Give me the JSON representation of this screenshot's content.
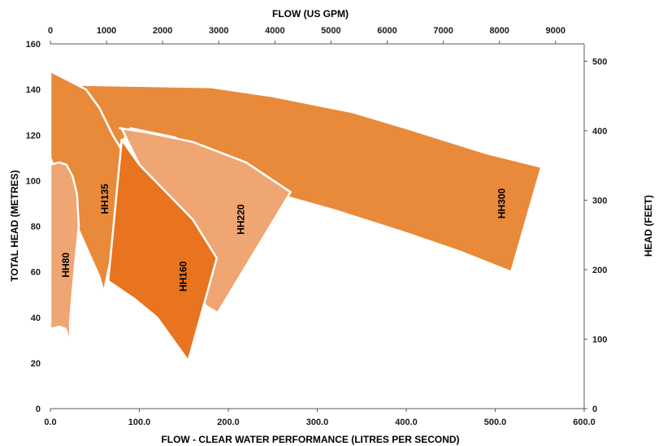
{
  "chart_data": {
    "type": "area",
    "title": "",
    "xlabel": "FLOW - CLEAR WATER PERFORMANCE (LITRES PER SECOND)",
    "ylabel": "TOTAL HEAD (METRES)",
    "x2label": "FLOW (US GPM)",
    "y2label": "HEAD (FEET)",
    "xlim": [
      0,
      600
    ],
    "ylim": [
      0,
      160
    ],
    "x2lim": [
      0,
      9510
    ],
    "y2lim": [
      0,
      525
    ],
    "x_ticks": [
      "0.0",
      "100.0",
      "200.0",
      "300.0",
      "400.0",
      "500.0",
      "600.0"
    ],
    "x_tick_values": [
      0,
      100,
      200,
      300,
      400,
      500,
      600
    ],
    "y_ticks": [
      "0",
      "20",
      "40",
      "60",
      "80",
      "100",
      "120",
      "140",
      "160"
    ],
    "y_tick_values": [
      0,
      20,
      40,
      60,
      80,
      100,
      120,
      140,
      160
    ],
    "x2_ticks": [
      "0",
      "1000",
      "2000",
      "3000",
      "4000",
      "5000",
      "6000",
      "7000",
      "8000",
      "9000"
    ],
    "x2_tick_values": [
      0,
      1000,
      2000,
      3000,
      4000,
      5000,
      6000,
      7000,
      8000,
      9000
    ],
    "y2_ticks": [
      "0",
      "100",
      "200",
      "300",
      "400",
      "500"
    ],
    "y2_tick_values": [
      0,
      100,
      200,
      300,
      400,
      500
    ],
    "grid": false,
    "series": [
      {
        "name": "HH300",
        "color": "#e98a3a",
        "label_at": [
          508,
          90
        ],
        "points": [
          [
            0,
            148
          ],
          [
            35,
            142
          ],
          [
            180,
            141
          ],
          [
            250,
            137
          ],
          [
            340,
            130
          ],
          [
            400,
            123
          ],
          [
            490,
            112
          ],
          [
            552,
            106
          ],
          [
            518,
            60
          ],
          [
            460,
            69
          ],
          [
            400,
            77
          ],
          [
            320,
            87
          ],
          [
            265,
            93
          ],
          [
            140,
            119
          ],
          [
            90,
            123
          ],
          [
            70,
            110
          ],
          [
            50,
            100
          ],
          [
            30,
            80
          ],
          [
            0,
            80
          ]
        ]
      },
      {
        "name": "HH220",
        "color": "#efa672",
        "label_at": [
          215,
          83
        ],
        "points": [
          [
            78,
            123
          ],
          [
            110,
            121
          ],
          [
            160,
            117
          ],
          [
            220,
            108
          ],
          [
            270,
            95
          ],
          [
            188,
            42
          ],
          [
            175,
            45
          ],
          [
            145,
            70
          ],
          [
            100,
            107
          ],
          [
            80,
            123
          ]
        ]
      },
      {
        "name": "HH135",
        "color": "#e98a3a",
        "label_at": [
          62,
          92
        ],
        "points": [
          [
            0,
            148
          ],
          [
            40,
            140
          ],
          [
            55,
            132
          ],
          [
            70,
            120
          ],
          [
            90,
            107
          ],
          [
            60,
            51
          ],
          [
            55,
            58
          ],
          [
            30,
            80
          ],
          [
            0,
            110
          ]
        ]
      },
      {
        "name": "HH160",
        "color": "#e8741f",
        "label_at": [
          150,
          58
        ],
        "points": [
          [
            80,
            118
          ],
          [
            100,
            107
          ],
          [
            130,
            95
          ],
          [
            160,
            83
          ],
          [
            187,
            66
          ],
          [
            155,
            21
          ],
          [
            120,
            40
          ],
          [
            95,
            48
          ],
          [
            65,
            56
          ],
          [
            80,
            117
          ]
        ]
      },
      {
        "name": "HH80",
        "color": "#efa672",
        "label_at": [
          18,
          63
        ],
        "points": [
          [
            0,
            107
          ],
          [
            10,
            108
          ],
          [
            18,
            107
          ],
          [
            25,
            102
          ],
          [
            30,
            94
          ],
          [
            32,
            80
          ],
          [
            29,
            69
          ],
          [
            25,
            52
          ],
          [
            22,
            38
          ],
          [
            22,
            29
          ],
          [
            17,
            35
          ],
          [
            10,
            36
          ],
          [
            0,
            35
          ]
        ]
      }
    ]
  }
}
